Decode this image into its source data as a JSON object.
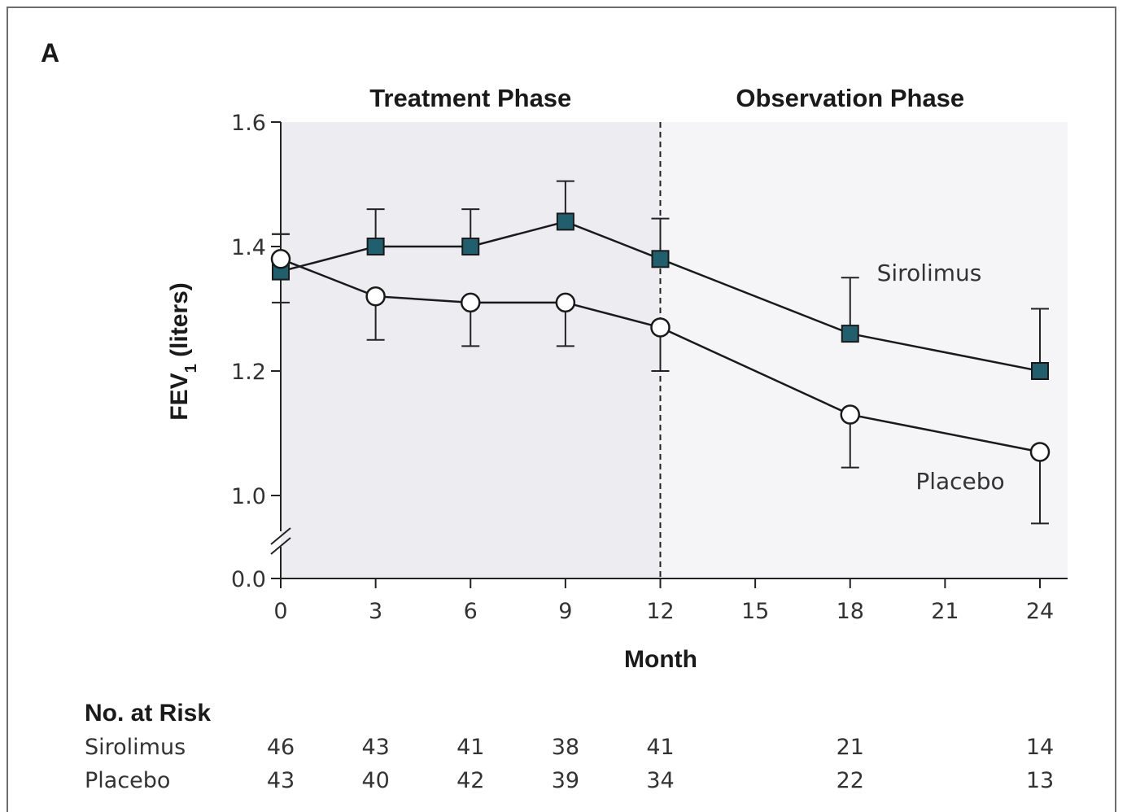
{
  "panel_letter": "A",
  "chart_data": {
    "type": "line",
    "title": "",
    "xlabel": "Month",
    "ylabel_main": "FEV",
    "ylabel_sub": "1",
    "ylabel_rest": " (liters)",
    "phases": [
      {
        "name": "Treatment Phase",
        "x_range": [
          0,
          12
        ]
      },
      {
        "name": "Observation Phase",
        "x_range": [
          12,
          24
        ]
      }
    ],
    "phase_divider_x": 12,
    "xlim": [
      0,
      24
    ],
    "x_ticks": [
      0,
      3,
      6,
      9,
      12,
      15,
      18,
      21,
      24
    ],
    "x_tick_labels": [
      "0",
      "3",
      "6",
      "9",
      "12",
      "15",
      "18",
      "21",
      "24"
    ],
    "ylim": [
      1.0,
      1.6
    ],
    "y_ticks": [
      1.6,
      1.4,
      1.2,
      1.0,
      0.0
    ],
    "y_tick_labels": [
      "1.6",
      "1.4",
      "1.2",
      "1.0",
      "0.0"
    ],
    "y_axis_break": true,
    "series": [
      {
        "name": "Sirolimus",
        "marker": "square",
        "color": "#1f5f6e",
        "x": [
          0,
          3,
          6,
          9,
          12,
          18,
          24
        ],
        "y": [
          1.36,
          1.4,
          1.4,
          1.44,
          1.38,
          1.26,
          1.2
        ],
        "error_plus": [
          0.06,
          0.06,
          0.06,
          0.065,
          0.065,
          0.09,
          0.1
        ],
        "error_minus": [
          0.05,
          0,
          0,
          0,
          0,
          0,
          0
        ]
      },
      {
        "name": "Placebo",
        "marker": "circle",
        "color": "#ffffff",
        "x": [
          0,
          3,
          6,
          9,
          12,
          18,
          24
        ],
        "y": [
          1.38,
          1.32,
          1.31,
          1.31,
          1.27,
          1.13,
          1.07
        ],
        "error_plus": [
          0.04,
          0,
          0,
          0,
          0,
          0,
          0
        ],
        "error_minus": [
          0,
          0.07,
          0.07,
          0.07,
          0.07,
          0.085,
          0.115
        ]
      }
    ]
  },
  "risk_table": {
    "title": "No. at Risk",
    "time_points": [
      0,
      3,
      6,
      9,
      12,
      18,
      24
    ],
    "rows": [
      {
        "name": "Sirolimus",
        "values": [
          "46",
          "43",
          "41",
          "38",
          "41",
          "21",
          "14"
        ]
      },
      {
        "name": "Placebo",
        "values": [
          "43",
          "40",
          "42",
          "39",
          "34",
          "22",
          "13"
        ]
      }
    ]
  }
}
